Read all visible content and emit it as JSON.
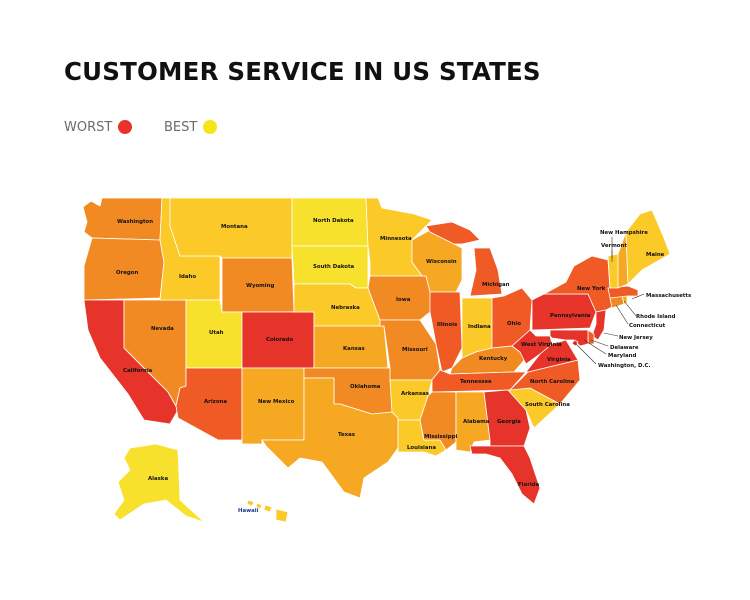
{
  "title": "CUSTOMER SERVICE IN US STATES",
  "legend": {
    "worst": {
      "label": "WORST",
      "color": "#e8322a"
    },
    "best": {
      "label": "BEST",
      "color": "#f5e418"
    }
  },
  "palette": {
    "c1": "#e6342a",
    "c2": "#ef5a25",
    "c3": "#f28a24",
    "c4": "#f7a823",
    "c5": "#fbc928",
    "c6": "#f8e12c"
  },
  "states": {
    "washington": {
      "label": "Washington",
      "tier": 3
    },
    "oregon": {
      "label": "Oregon",
      "tier": 3
    },
    "california": {
      "label": "California",
      "tier": 1
    },
    "nevada": {
      "label": "Nevada",
      "tier": 3
    },
    "idaho": {
      "label": "Idaho",
      "tier": 5
    },
    "montana": {
      "label": "Montana",
      "tier": 5
    },
    "wyoming": {
      "label": "Wyoming",
      "tier": 3
    },
    "utah": {
      "label": "Utah",
      "tier": 6
    },
    "colorado": {
      "label": "Colorado",
      "tier": 1
    },
    "arizona": {
      "label": "Arizona",
      "tier": 2
    },
    "new_mexico": {
      "label": "New Mexico",
      "tier": 4
    },
    "north_dakota": {
      "label": "North Dakota",
      "tier": 6
    },
    "south_dakota": {
      "label": "South Dakota",
      "tier": 6
    },
    "nebraska": {
      "label": "Nebraska",
      "tier": 5
    },
    "kansas": {
      "label": "Kansas",
      "tier": 4
    },
    "oklahoma": {
      "label": "Oklahoma",
      "tier": 3
    },
    "texas": {
      "label": "Texas",
      "tier": 4
    },
    "minnesota": {
      "label": "Minnesota",
      "tier": 5
    },
    "iowa": {
      "label": "Iowa",
      "tier": 3
    },
    "missouri": {
      "label": "Missouri",
      "tier": 3
    },
    "arkansas": {
      "label": "Arkansas",
      "tier": 5
    },
    "louisiana": {
      "label": "Louisiana",
      "tier": 5
    },
    "wisconsin": {
      "label": "Wisconsin",
      "tier": 4
    },
    "illinois": {
      "label": "Illinois",
      "tier": 2
    },
    "michigan": {
      "label": "Michigan",
      "tier": 2
    },
    "indiana": {
      "label": "Indiana",
      "tier": 5
    },
    "ohio": {
      "label": "Ohio",
      "tier": 2
    },
    "kentucky": {
      "label": "Kentucky",
      "tier": 3
    },
    "tennessee": {
      "label": "Tennessee",
      "tier": 2
    },
    "mississippi": {
      "label": "Mississippi",
      "tier": 3
    },
    "alabama": {
      "label": "Alabama",
      "tier": 4
    },
    "georgia": {
      "label": "Georgia",
      "tier": 1
    },
    "florida": {
      "label": "Florida",
      "tier": 1
    },
    "south_carolina": {
      "label": "South Carolina",
      "tier": 5
    },
    "north_carolina": {
      "label": "North Carolina",
      "tier": 2
    },
    "virginia": {
      "label": "Virginia",
      "tier": 1
    },
    "west_virginia": {
      "label": "West Virginia",
      "tier": 1
    },
    "pennsylvania": {
      "label": "Pennsylvania",
      "tier": 1
    },
    "new_york": {
      "label": "New York",
      "tier": 2
    },
    "new_jersey": {
      "label": "New Jersey",
      "tier": 1
    },
    "delaware": {
      "label": "Delaware",
      "tier": 2
    },
    "maryland": {
      "label": "Maryland",
      "tier": 1
    },
    "dc": {
      "label": "Washington, D.C.",
      "tier": 1
    },
    "connecticut": {
      "label": "Connecticut",
      "tier": 3
    },
    "rhode_island": {
      "label": "Rhode Island",
      "tier": 4
    },
    "massachusetts": {
      "label": "Massachusetts",
      "tier": 2
    },
    "vermont": {
      "label": "Vermont",
      "tier": 5
    },
    "new_hampshire": {
      "label": "New Hampshire",
      "tier": 4
    },
    "maine": {
      "label": "Maine",
      "tier": 5
    },
    "alaska": {
      "label": "Alaska",
      "tier": 6
    },
    "hawaii": {
      "label": "Hawaii",
      "tier": 5
    }
  }
}
